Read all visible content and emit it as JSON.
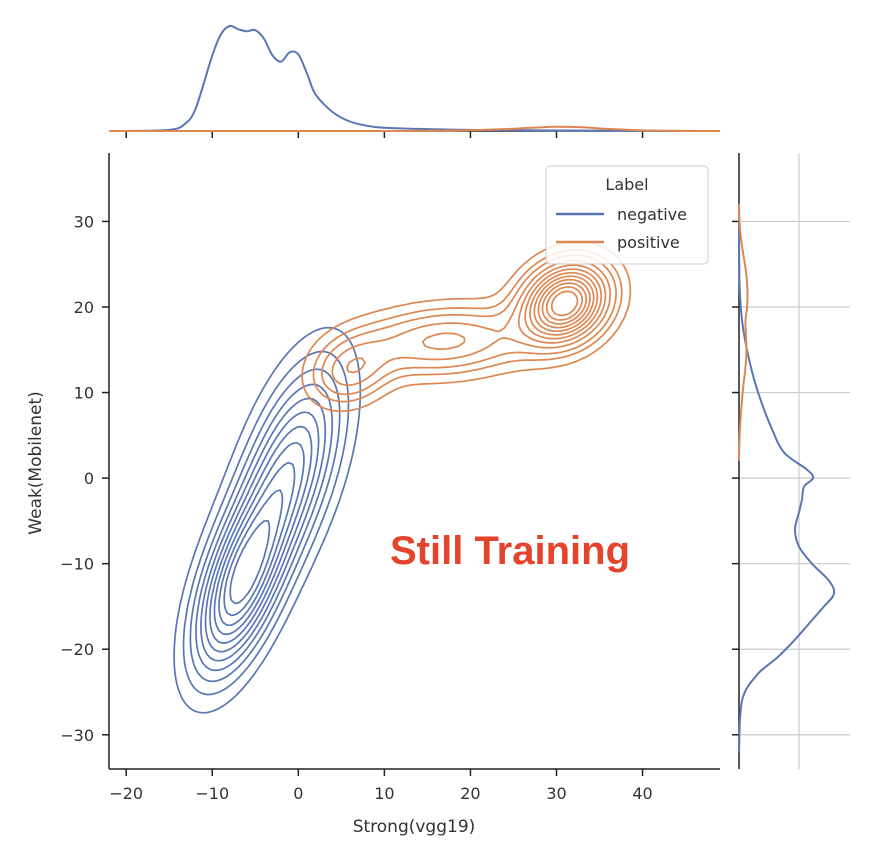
{
  "chart_data": {
    "type": "kde-joint",
    "xlabel": "Strong(vgg19)",
    "ylabel": "Weak(Mobilenet)",
    "xlim": [
      -22,
      49
    ],
    "ylim": [
      -34,
      38
    ],
    "xticks": [
      -20,
      -10,
      0,
      10,
      20,
      30,
      40
    ],
    "yticks": [
      -30,
      -20,
      -10,
      0,
      10,
      20,
      30
    ],
    "xtick_labels": [
      "−20",
      "−10",
      "0",
      "10",
      "20",
      "30",
      "40"
    ],
    "ytick_labels": [
      "−30",
      "−20",
      "−10",
      "0",
      "10",
      "20",
      "30"
    ],
    "legend": {
      "title": "Label",
      "position": "top-right",
      "entries": [
        {
          "name": "negative",
          "color": "#5a76b5"
        },
        {
          "name": "positive",
          "color": "#dd8852"
        }
      ]
    },
    "annotation": {
      "text": "Still Training",
      "color": "#e5432b"
    },
    "series": [
      {
        "name": "negative",
        "color": "#5a76b5",
        "components": [
          {
            "mx": -7.0,
            "my": -13.0,
            "sx": 3.6,
            "sy": 7.0,
            "rho": 0.55,
            "w": 0.55
          },
          {
            "mx": -1.0,
            "my": 1.0,
            "sx": 4.2,
            "sy": 8.5,
            "rho": 0.55,
            "w": 0.45
          }
        ],
        "contour_levels": [
          0.1,
          0.18,
          0.26,
          0.34,
          0.42,
          0.5,
          0.58,
          0.66,
          0.74,
          0.82,
          0.9
        ],
        "marginal_x": [
          [
            -22,
            0
          ],
          [
            -15,
            0.01
          ],
          [
            -13,
            0.08
          ],
          [
            -12,
            0.2
          ],
          [
            -11,
            0.45
          ],
          [
            -10,
            0.72
          ],
          [
            -9,
            0.92
          ],
          [
            -8,
            1.0
          ],
          [
            -7,
            0.97
          ],
          [
            -6,
            0.95
          ],
          [
            -5,
            0.96
          ],
          [
            -4,
            0.88
          ],
          [
            -3,
            0.72
          ],
          [
            -2,
            0.66
          ],
          [
            -1,
            0.75
          ],
          [
            0,
            0.73
          ],
          [
            1,
            0.55
          ],
          [
            2,
            0.35
          ],
          [
            4,
            0.18
          ],
          [
            6,
            0.09
          ],
          [
            8,
            0.05
          ],
          [
            10,
            0.03
          ],
          [
            14,
            0.02
          ],
          [
            20,
            0.01
          ],
          [
            30,
            0.005
          ],
          [
            49,
            0
          ]
        ],
        "marginal_y": [
          [
            -32,
            0
          ],
          [
            -26,
            0.03
          ],
          [
            -23,
            0.18
          ],
          [
            -21,
            0.38
          ],
          [
            -19,
            0.55
          ],
          [
            -17,
            0.7
          ],
          [
            -15,
            0.85
          ],
          [
            -13.5,
            0.95
          ],
          [
            -12,
            0.9
          ],
          [
            -10,
            0.73
          ],
          [
            -8,
            0.6
          ],
          [
            -6,
            0.56
          ],
          [
            -4,
            0.6
          ],
          [
            -2.5,
            0.63
          ],
          [
            -1,
            0.65
          ],
          [
            0,
            0.74
          ],
          [
            1,
            0.68
          ],
          [
            3,
            0.45
          ],
          [
            6,
            0.32
          ],
          [
            9,
            0.22
          ],
          [
            12,
            0.14
          ],
          [
            15,
            0.08
          ],
          [
            18,
            0.035
          ],
          [
            21,
            0.012
          ],
          [
            24,
            0.003
          ],
          [
            30,
            0
          ]
        ]
      },
      {
        "name": "positive",
        "color": "#dd8852",
        "components": [
          {
            "mx": 31.0,
            "my": 20.5,
            "sx": 3.2,
            "sy": 3.0,
            "rho": 0.2,
            "w": 0.6
          },
          {
            "mx": 17.0,
            "my": 16.0,
            "sx": 6.5,
            "sy": 2.6,
            "rho": 0.15,
            "w": 0.22
          },
          {
            "mx": 6.0,
            "my": 12.5,
            "sx": 3.0,
            "sy": 2.6,
            "rho": 0.2,
            "w": 0.18
          }
        ],
        "contour_levels": [
          0.06,
          0.12,
          0.18,
          0.26,
          0.34,
          0.42,
          0.5,
          0.58,
          0.66,
          0.74,
          0.82,
          0.9
        ],
        "marginal_x": [
          [
            -22,
            0
          ],
          [
            10,
            0
          ],
          [
            16,
            0.003
          ],
          [
            20,
            0.008
          ],
          [
            24,
            0.018
          ],
          [
            27,
            0.03
          ],
          [
            30,
            0.04
          ],
          [
            33,
            0.035
          ],
          [
            36,
            0.02
          ],
          [
            40,
            0.006
          ],
          [
            44,
            0.001
          ],
          [
            49,
            0
          ]
        ],
        "marginal_y": [
          [
            2,
            0
          ],
          [
            4,
            0.003
          ],
          [
            7,
            0.012
          ],
          [
            9,
            0.022
          ],
          [
            11,
            0.035
          ],
          [
            13,
            0.05
          ],
          [
            15,
            0.058
          ],
          [
            17,
            0.052
          ],
          [
            18.5,
            0.05
          ],
          [
            20,
            0.062
          ],
          [
            22,
            0.065
          ],
          [
            24,
            0.055
          ],
          [
            26,
            0.035
          ],
          [
            28,
            0.015
          ],
          [
            30,
            0.004
          ],
          [
            32,
            0
          ]
        ]
      }
    ]
  }
}
